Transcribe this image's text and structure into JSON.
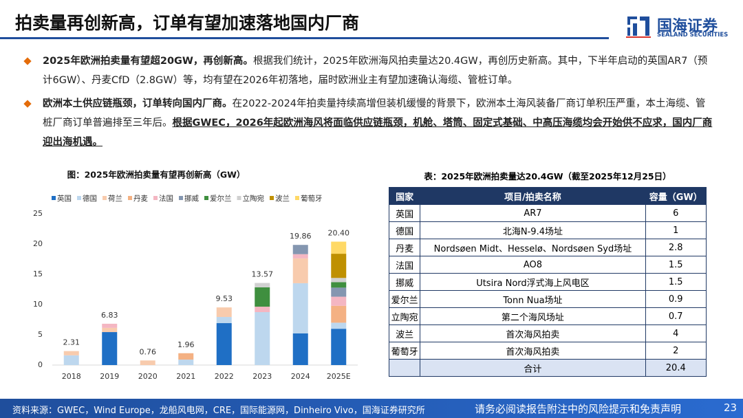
{
  "header": {
    "title": "拍卖量再创新高，订单有望加速落地国内厂商",
    "logo_cn": "国海证券",
    "logo_en": "SEALAND SECURITIES"
  },
  "bullets": [
    {
      "lead": "2025年欧洲拍卖量有望超20GW，再创新高。",
      "body": "根据我们统计，2025年欧洲海风拍卖量达20.4GW，再创历史新高。其中，下半年启动的英国AR7（预计6GW）、丹麦CfD（2.8GW）等，均有望在2026年初落地，届时欧洲业主有望加速确认海缆、管桩订单。"
    },
    {
      "lead": "欧洲本土供应链瓶颈，订单转向国内厂商。",
      "body": "在2022-2024年拍卖量持续高增但装机缓慢的背景下，欧洲本土海风装备厂商订单积压严重，本土海缆、管桩厂商订单普遍排至三年后。",
      "emphasis": "根据GWEC，2026年起欧洲海风将面临供应链瓶颈，机舱、塔筒、固定式基础、中高压海缆均会开始供不应求，国内厂商迎出海机遇。"
    }
  ],
  "chart_data": {
    "type": "stacked-bar",
    "title": "图：2025年欧洲拍卖量有望再创新高（GW）",
    "categories": [
      "2018",
      "2019",
      "2020",
      "2021",
      "2022",
      "2023",
      "2024",
      "2025E"
    ],
    "series": [
      {
        "name": "英国",
        "color": "#1f6fc5",
        "values": [
          0,
          5.45,
          0,
          0,
          6.93,
          0,
          5.23,
          6
        ]
      },
      {
        "name": "德国",
        "color": "#bdd7ee",
        "values": [
          1.61,
          0,
          0,
          0.9,
          1.02,
          8.75,
          8.3,
          1
        ]
      },
      {
        "name": "荷兰",
        "color": "#f8cbad",
        "values": [
          0.7,
          0.7,
          0.76,
          0,
          1.58,
          0,
          4.1,
          0
        ]
      },
      {
        "name": "丹麦",
        "color": "#f4b183",
        "values": [
          0,
          0,
          0,
          1.06,
          0,
          0,
          0,
          2.8
        ]
      },
      {
        "name": "法国",
        "color": "#f4b6c2",
        "values": [
          0,
          0.68,
          0,
          0,
          0,
          0.9,
          0.7,
          1.5
        ]
      },
      {
        "name": "挪威",
        "color": "#8496b0",
        "values": [
          0,
          0,
          0,
          0,
          0,
          0,
          1.53,
          1.5
        ]
      },
      {
        "name": "爱尔兰",
        "color": "#3f8f3f",
        "values": [
          0,
          0,
          0,
          0,
          0,
          3.2,
          0,
          0.9
        ]
      },
      {
        "name": "立陶宛",
        "color": "#d0d0d0",
        "values": [
          0,
          0,
          0,
          0,
          0,
          0.72,
          0,
          0.7
        ]
      },
      {
        "name": "波兰",
        "color": "#bf9000",
        "values": [
          0,
          0,
          0,
          0,
          0,
          0,
          0,
          4
        ]
      },
      {
        "name": "葡萄牙",
        "color": "#ffd966",
        "values": [
          0,
          0,
          0,
          0,
          0,
          0,
          0,
          2
        ]
      }
    ],
    "totals": [
      2.31,
      6.83,
      0.76,
      1.96,
      9.53,
      13.57,
      19.86,
      20.4
    ],
    "total_labels": [
      "2.31",
      "6.83",
      "0.76",
      "1.96",
      "9.53",
      "13.57",
      "19.86",
      "20.40"
    ],
    "ylim": [
      0,
      25
    ],
    "yticks": [
      0,
      5,
      10,
      15,
      20,
      25
    ],
    "legend": "top"
  },
  "table": {
    "title": "表：2025年欧洲拍卖量达20.4GW（截至2025年12月25日）",
    "header": [
      "国家",
      "项目/拍卖名称",
      "容量（GW）"
    ],
    "rows": [
      [
        "英国",
        "AR7",
        "6"
      ],
      [
        "德国",
        "北海N-9.4场址",
        "1"
      ],
      [
        "丹麦",
        "Nordsøen Midt、Hesselø、Nordsøen Syd场址",
        "2.8"
      ],
      [
        "法国",
        "AO8",
        "1.5"
      ],
      [
        "挪威",
        "Utsira Nord浮式海上风电区",
        "1.5"
      ],
      [
        "爱尔兰",
        "Tonn Nua场址",
        "0.9"
      ],
      [
        "立陶宛",
        "第二个海风场址",
        "0.7"
      ],
      [
        "波兰",
        "首次海风拍卖",
        "4"
      ],
      [
        "葡萄牙",
        "首次海风拍卖",
        "2"
      ]
    ],
    "total": [
      "合计",
      "20.4"
    ]
  },
  "footer": {
    "source": "资料来源：GWEC，Wind Europe，龙船风电网，CRE，国际能源网，Dinheiro Vivo，国海证券研究所",
    "disclaimer": "请务必阅读报告附注中的风险提示和免责声明",
    "page": "23"
  }
}
